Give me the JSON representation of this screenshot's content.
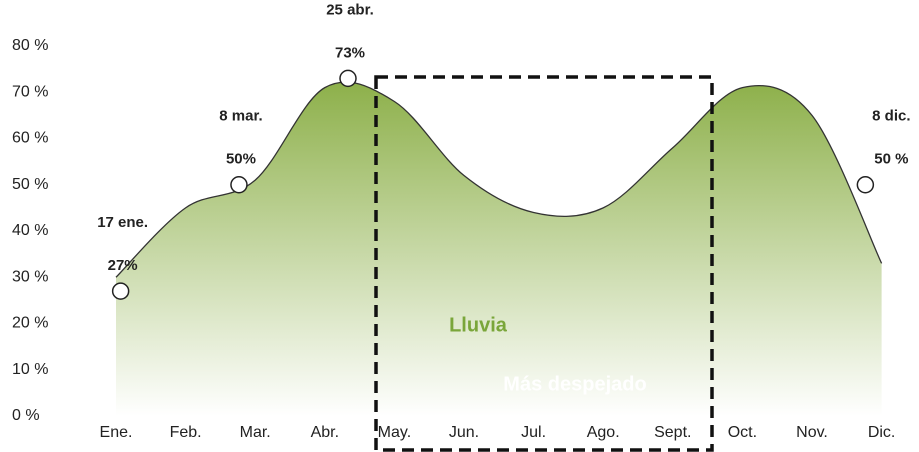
{
  "chart_data": {
    "type": "area",
    "categories": [
      "Ene.",
      "Feb.",
      "Mar.",
      "Abr.",
      "May.",
      "Jun.",
      "Jul.",
      "Ago.",
      "Sept.",
      "Oct.",
      "Nov.",
      "Dic."
    ],
    "values": [
      30,
      45,
      51,
      71,
      68,
      52,
      44,
      45,
      58,
      71,
      65,
      33
    ],
    "color": "#8db04a",
    "line_color": "#333333",
    "ylim": [
      0,
      80
    ],
    "yticks": [
      {
        "value": 0,
        "label": "0 %"
      },
      {
        "value": 10,
        "label": "10 %"
      },
      {
        "value": 20,
        "label": "20 %"
      },
      {
        "value": 30,
        "label": "30 %"
      },
      {
        "value": 40,
        "label": "40 %"
      },
      {
        "value": 50,
        "label": "50 %"
      },
      {
        "value": 60,
        "label": "60 %"
      },
      {
        "value": 70,
        "label": "70 %"
      },
      {
        "value": 80,
        "label": "80 %"
      }
    ],
    "annotations": [
      {
        "date": "17 ene.",
        "value": 27,
        "value_label": "27%"
      },
      {
        "date": "8 mar.",
        "value": 50,
        "value_label": "50%"
      },
      {
        "date": "25 abr.",
        "value": 73,
        "value_label": "73%"
      },
      {
        "date": "8 dic.",
        "value": 50,
        "value_label": "50 %"
      }
    ],
    "labels": [
      {
        "text": "Lluvia",
        "color": "#7aa63a"
      },
      {
        "text": "Más despejado",
        "color": "#ffffff"
      }
    ]
  }
}
